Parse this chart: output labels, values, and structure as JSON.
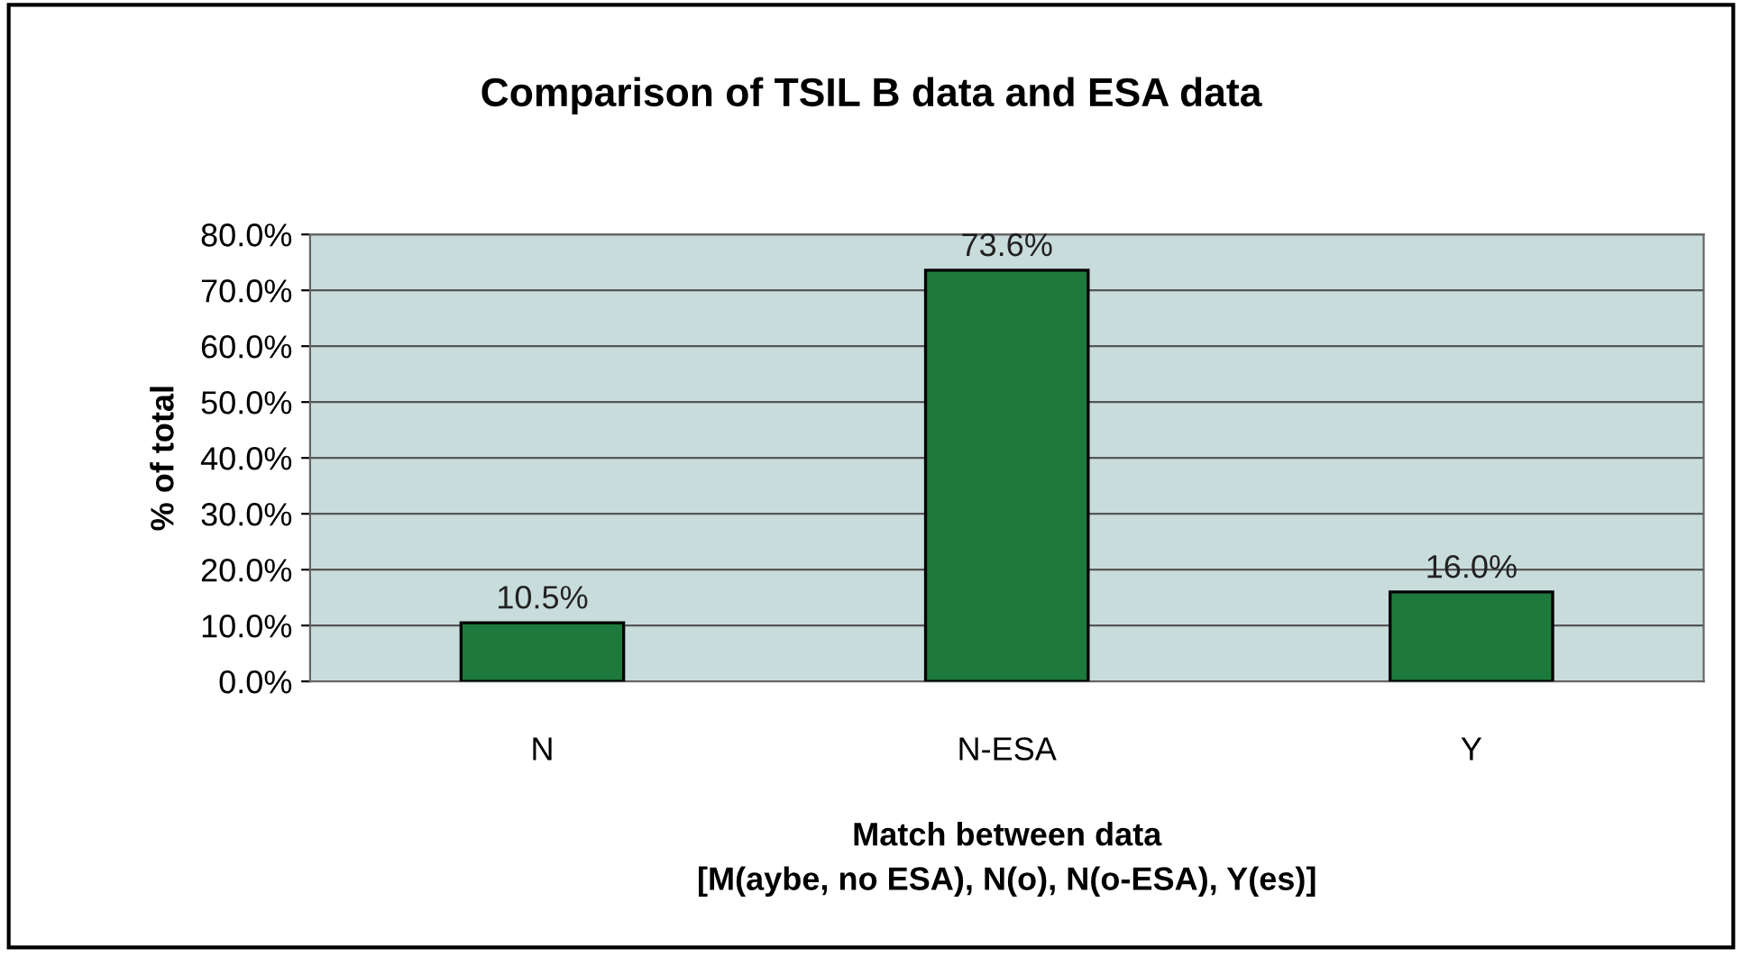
{
  "chart_data": {
    "type": "bar",
    "title": "Comparison of TSIL B data and ESA data",
    "xlabel": "Match between data\n[M(aybe, no ESA), N(o), N(o-ESA), Y(es)]",
    "ylabel": "% of total",
    "categories": [
      "N",
      "N-ESA",
      "Y"
    ],
    "values": [
      10.5,
      73.6,
      16.0
    ],
    "value_labels": [
      "10.5%",
      "73.6%",
      "16.0%"
    ],
    "color": "#1e7a3c",
    "ylim": [
      0,
      80
    ],
    "yticks": [
      {
        "value": 0,
        "label": "0.0%"
      },
      {
        "value": 10,
        "label": "10.0%"
      },
      {
        "value": 20,
        "label": "20.0%"
      },
      {
        "value": 30,
        "label": "30.0%"
      },
      {
        "value": 40,
        "label": "40.0%"
      },
      {
        "value": 50,
        "label": "50.0%"
      },
      {
        "value": 60,
        "label": "60.0%"
      },
      {
        "value": 70,
        "label": "70.0%"
      },
      {
        "value": 80,
        "label": "80.0%"
      }
    ],
    "grid": "y"
  }
}
